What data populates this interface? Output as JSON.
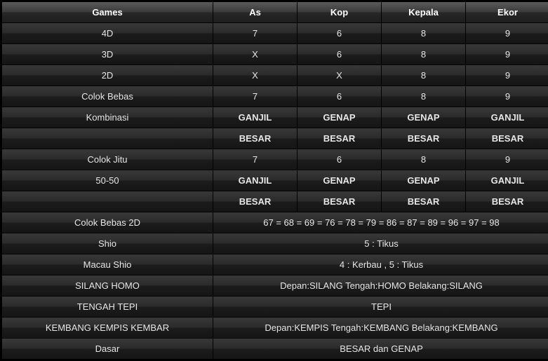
{
  "header": {
    "games": "Games",
    "as": "As",
    "kop": "Kop",
    "kepala": "Kepala",
    "ekor": "Ekor"
  },
  "rows4": [
    {
      "label": "4D",
      "as": "7",
      "kop": "6",
      "kepala": "8",
      "ekor": "9",
      "bold": false
    },
    {
      "label": "3D",
      "as": "X",
      "kop": "6",
      "kepala": "8",
      "ekor": "9",
      "bold": false
    },
    {
      "label": "2D",
      "as": "X",
      "kop": "X",
      "kepala": "8",
      "ekor": "9",
      "bold": false
    },
    {
      "label": "Colok Bebas",
      "as": "7",
      "kop": "6",
      "kepala": "8",
      "ekor": "9",
      "bold": false
    },
    {
      "label": "Kombinasi",
      "as": "GANJIL",
      "kop": "GENAP",
      "kepala": "GENAP",
      "ekor": "GANJIL",
      "bold": true
    },
    {
      "label": "",
      "as": "BESAR",
      "kop": "BESAR",
      "kepala": "BESAR",
      "ekor": "BESAR",
      "bold": true
    },
    {
      "label": "Colok Jitu",
      "as": "7",
      "kop": "6",
      "kepala": "8",
      "ekor": "9",
      "bold": false
    },
    {
      "label": "50-50",
      "as": "GANJIL",
      "kop": "GENAP",
      "kepala": "GENAP",
      "ekor": "GANJIL",
      "bold": true
    },
    {
      "label": "",
      "as": "BESAR",
      "kop": "BESAR",
      "kepala": "BESAR",
      "ekor": "BESAR",
      "bold": true
    }
  ],
  "rowsSpan": [
    {
      "label": "Colok Bebas 2D",
      "value": "67 = 68 = 69 = 76 = 78 = 79 = 86 = 87 = 89 = 96 = 97 = 98"
    },
    {
      "label": "Shio",
      "value": "5 : Tikus"
    },
    {
      "label": "Macau Shio",
      "value": "4 : Kerbau , 5 : Tikus"
    },
    {
      "label": "SILANG HOMO",
      "value": "Depan:SILANG Tengah:HOMO Belakang:SILANG"
    },
    {
      "label": "TENGAH TEPI",
      "value": "TEPI"
    },
    {
      "label": "KEMBANG KEMPIS KEMBAR",
      "value": "Depan:KEMPIS Tengah:KEMBANG Belakang:KEMBANG"
    },
    {
      "label": "Dasar",
      "value": "BESAR dan GENAP"
    }
  ]
}
